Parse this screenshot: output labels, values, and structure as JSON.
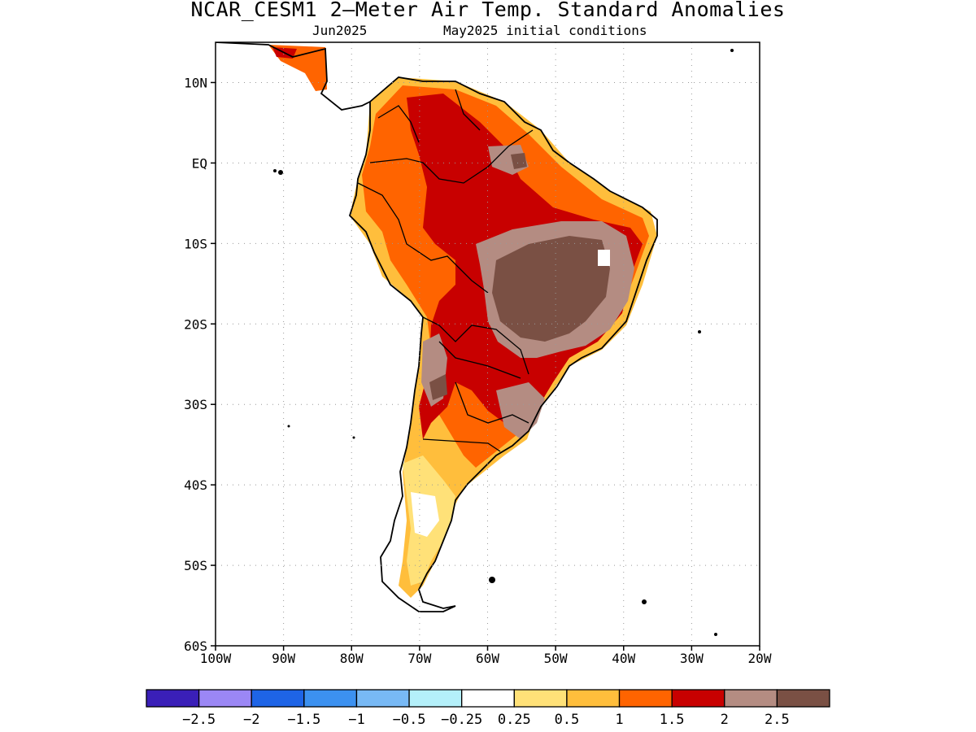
{
  "title": "NCAR_CESM1 2—Meter Air Temp. Standard Anomalies",
  "valid_month": "Jun2025",
  "init_label": "May2025 initial conditions",
  "chart_data": {
    "type": "heatmap",
    "title": "NCAR_CESM1 2—Meter Air Temp. Standard Anomalies",
    "lon_range": [
      -100,
      -20
    ],
    "lat_range": [
      -60,
      15
    ],
    "x_ticks": [
      "100W",
      "90W",
      "80W",
      "70W",
      "60W",
      "50W",
      "40W",
      "30W",
      "20W"
    ],
    "y_ticks": [
      "10N",
      "EQ",
      "10S",
      "20S",
      "30S",
      "40S",
      "50S",
      "60S"
    ],
    "grid": true,
    "colorbar": {
      "colors": [
        "#3a1fb8",
        "#9b87f5",
        "#1e64e6",
        "#3c91f0",
        "#78b9f5",
        "#b4f0fa",
        "#ffffff",
        "#ffe178",
        "#ffbe3c",
        "#ff6400",
        "#c80000",
        "#b48c82",
        "#7a5044"
      ],
      "labels": [
        "−2.5",
        "−2",
        "−1.5",
        "−1",
        "−0.5",
        "−0.25",
        "0.25",
        "0.5",
        "1",
        "1.5",
        "2",
        "2.5"
      ]
    }
  }
}
